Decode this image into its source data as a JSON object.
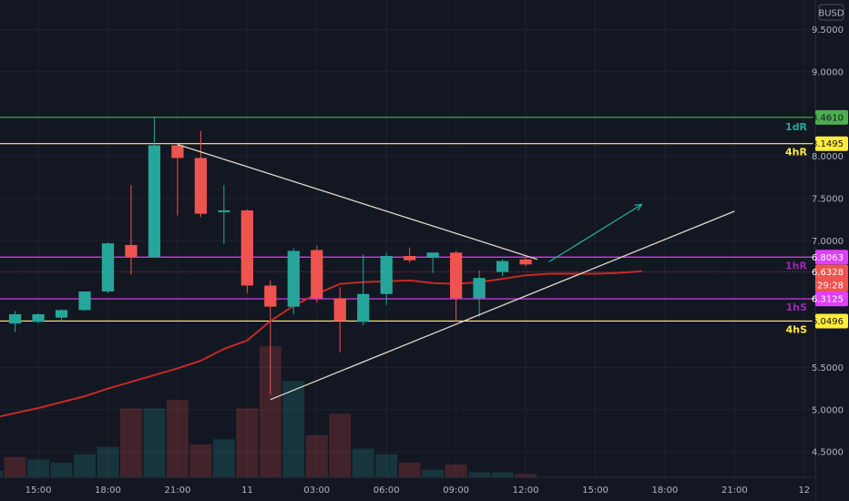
{
  "chart_data": {
    "type": "candlestick",
    "currency": "BUSD",
    "ylim": [
      4.2,
      9.85
    ],
    "y_ticks": [
      "9.5000",
      "9.0000",
      "8.0000",
      "7.5000",
      "7.0000",
      "5.5000",
      "5.0000",
      "4.5000"
    ],
    "y_tick_values": [
      9.5,
      9.0,
      8.0,
      7.5,
      7.0,
      5.5,
      5.0,
      4.5
    ],
    "x_labels": [
      "15:00",
      "18:00",
      "21:00",
      "11",
      "03:00",
      "06:00",
      "09:00",
      "12:00",
      "15:00",
      "18:00",
      "21:00",
      "12"
    ],
    "x_label_times": [
      2,
      5,
      8,
      11,
      14,
      17,
      20,
      23,
      26,
      29,
      32,
      35
    ],
    "x_range": [
      0.35,
      35.4
    ],
    "candles": [
      {
        "t": 0,
        "o": 5.82,
        "h": 6.12,
        "l": 5.8,
        "c": 6.1
      },
      {
        "t": 1,
        "o": 6.02,
        "h": 6.17,
        "l": 5.92,
        "c": 6.13
      },
      {
        "t": 2,
        "o": 6.04,
        "h": 6.14,
        "l": 6.02,
        "c": 6.13
      },
      {
        "t": 3,
        "o": 6.09,
        "h": 6.19,
        "l": 6.05,
        "c": 6.18
      },
      {
        "t": 4,
        "o": 6.18,
        "h": 6.38,
        "l": 6.17,
        "c": 6.4
      },
      {
        "t": 5,
        "o": 6.4,
        "h": 6.98,
        "l": 6.38,
        "c": 6.97
      },
      {
        "t": 6,
        "o": 6.95,
        "h": 7.66,
        "l": 6.6,
        "c": 6.81
      },
      {
        "t": 7,
        "o": 6.81,
        "h": 8.46,
        "l": 6.8,
        "c": 8.13
      },
      {
        "t": 8,
        "o": 8.13,
        "h": 8.14,
        "l": 7.3,
        "c": 7.98
      },
      {
        "t": 9,
        "o": 7.98,
        "h": 8.3,
        "l": 7.28,
        "c": 7.32
      },
      {
        "t": 10,
        "o": 7.36,
        "h": 7.66,
        "l": 6.96,
        "c": 7.36
      },
      {
        "t": 11,
        "o": 7.36,
        "h": 7.37,
        "l": 6.38,
        "c": 6.47
      },
      {
        "t": 12,
        "o": 6.47,
        "h": 6.53,
        "l": 5.18,
        "c": 6.22
      },
      {
        "t": 13,
        "o": 6.22,
        "h": 6.91,
        "l": 6.13,
        "c": 6.88
      },
      {
        "t": 14,
        "o": 6.89,
        "h": 6.94,
        "l": 6.27,
        "c": 6.32
      },
      {
        "t": 15,
        "o": 6.32,
        "h": 6.45,
        "l": 5.68,
        "c": 6.05
      },
      {
        "t": 16,
        "o": 6.04,
        "h": 6.84,
        "l": 6.0,
        "c": 6.37
      },
      {
        "t": 17,
        "o": 6.37,
        "h": 6.86,
        "l": 6.24,
        "c": 6.82
      },
      {
        "t": 18,
        "o": 6.82,
        "h": 6.92,
        "l": 6.74,
        "c": 6.77
      },
      {
        "t": 19,
        "o": 6.8,
        "h": 6.86,
        "l": 6.62,
        "c": 6.86
      },
      {
        "t": 20,
        "o": 6.86,
        "h": 6.88,
        "l": 6.05,
        "c": 6.32
      },
      {
        "t": 21,
        "o": 6.32,
        "h": 6.65,
        "l": 6.1,
        "c": 6.56
      },
      {
        "t": 22,
        "o": 6.63,
        "h": 6.78,
        "l": 6.58,
        "c": 6.76
      },
      {
        "t": 23,
        "o": 6.78,
        "h": 6.81,
        "l": 6.7,
        "c": 6.72
      }
    ],
    "volume": [
      {
        "t": 0,
        "v": 0.15,
        "up": true
      },
      {
        "t": 1,
        "v": 0.48,
        "up": false
      },
      {
        "t": 2,
        "v": 0.42,
        "up": true
      },
      {
        "t": 3,
        "v": 0.35,
        "up": true
      },
      {
        "t": 4,
        "v": 0.55,
        "up": true
      },
      {
        "t": 5,
        "v": 0.72,
        "up": true
      },
      {
        "t": 6,
        "v": 1.63,
        "up": false
      },
      {
        "t": 7,
        "v": 1.63,
        "up": true
      },
      {
        "t": 8,
        "v": 1.83,
        "up": false
      },
      {
        "t": 9,
        "v": 0.78,
        "up": false
      },
      {
        "t": 10,
        "v": 0.9,
        "up": true
      },
      {
        "t": 11,
        "v": 1.63,
        "up": false
      },
      {
        "t": 12,
        "v": 3.1,
        "up": false
      },
      {
        "t": 13,
        "v": 2.28,
        "up": true
      },
      {
        "t": 14,
        "v": 1.0,
        "up": false
      },
      {
        "t": 15,
        "v": 1.5,
        "up": false
      },
      {
        "t": 16,
        "v": 0.68,
        "up": true
      },
      {
        "t": 17,
        "v": 0.55,
        "up": true
      },
      {
        "t": 18,
        "v": 0.35,
        "up": false
      },
      {
        "t": 19,
        "v": 0.18,
        "up": true
      },
      {
        "t": 20,
        "v": 0.3,
        "up": false
      },
      {
        "t": 21,
        "v": 0.12,
        "up": true
      },
      {
        "t": 22,
        "v": 0.12,
        "up": true
      },
      {
        "t": 23,
        "v": 0.08,
        "up": false
      }
    ],
    "moving_average": [
      {
        "t": 0,
        "y": 4.9
      },
      {
        "t": 1,
        "y": 4.96
      },
      {
        "t": 2,
        "y": 5.02
      },
      {
        "t": 3,
        "y": 5.09
      },
      {
        "t": 4,
        "y": 5.16
      },
      {
        "t": 5,
        "y": 5.25
      },
      {
        "t": 6,
        "y": 5.33
      },
      {
        "t": 7,
        "y": 5.41
      },
      {
        "t": 8,
        "y": 5.49
      },
      {
        "t": 9,
        "y": 5.58
      },
      {
        "t": 10,
        "y": 5.72
      },
      {
        "t": 11,
        "y": 5.82
      },
      {
        "t": 12,
        "y": 6.05
      },
      {
        "t": 13,
        "y": 6.23
      },
      {
        "t": 14,
        "y": 6.37
      },
      {
        "t": 15,
        "y": 6.49
      },
      {
        "t": 16,
        "y": 6.51
      },
      {
        "t": 17,
        "y": 6.52
      },
      {
        "t": 18,
        "y": 6.53
      },
      {
        "t": 19,
        "y": 6.5
      },
      {
        "t": 20,
        "y": 6.49
      },
      {
        "t": 21,
        "y": 6.51
      },
      {
        "t": 22,
        "y": 6.55
      },
      {
        "t": 23,
        "y": 6.59
      },
      {
        "t": 24,
        "y": 6.61
      },
      {
        "t": 25,
        "y": 6.61
      },
      {
        "t": 26,
        "y": 6.61
      },
      {
        "t": 27,
        "y": 6.62
      },
      {
        "t": 28,
        "y": 6.64
      }
    ],
    "levels": [
      {
        "label": "1dR",
        "price": 8.461,
        "price_text": "8.4610",
        "color": "#4caf50",
        "tag_bg": "#4caf50",
        "tag_fg": "#131722",
        "label_color": "#26a69a",
        "label_side": "above"
      },
      {
        "label": "4hR",
        "price": 8.1495,
        "price_text": "8.1495",
        "color": "#fff176",
        "tag_bg": "#ffeb3b",
        "tag_fg": "#131722",
        "label_color": "#ffeb3b",
        "label_side": "below"
      },
      {
        "label": "1hR",
        "price": 6.8063,
        "price_text": "6.8063",
        "color": "#e040fb",
        "tag_bg": "#e040fb",
        "tag_fg": "#ffffff",
        "label_color": "#9c27b0",
        "label_side": "below"
      },
      {
        "label": "1hS",
        "price": 6.3125,
        "price_text": "6.3125",
        "color": "#e040fb",
        "tag_bg": "#e040fb",
        "tag_fg": "#ffffff",
        "label_color": "#9c27b0",
        "label_side": "below"
      },
      {
        "label": "4hS",
        "price": 6.0496,
        "price_text": "6.0496",
        "color": "#fff176",
        "tag_bg": "#ffeb3b",
        "tag_fg": "#131722",
        "label_color": "#ffeb3b",
        "label_side": "below"
      }
    ],
    "last_price": {
      "price": 6.6328,
      "text": "6.6328",
      "countdown": "29:28",
      "color": "#ef5350"
    },
    "trendlines": [
      {
        "name": "upper-trendline",
        "color": "#e0d7c6",
        "p1": {
          "t": 8,
          "y": 8.14
        },
        "p2": {
          "t": 23.5,
          "y": 6.78
        }
      },
      {
        "name": "lower-trendline",
        "color": "#e0d7c6",
        "p1": {
          "t": 12,
          "y": 5.12
        },
        "p2": {
          "t": 32,
          "y": 7.35
        }
      }
    ],
    "arrow": {
      "color": "#26a69a",
      "p1": {
        "t": 24,
        "y": 6.75
      },
      "p2": {
        "t": 28,
        "y": 7.43
      }
    },
    "colors": {
      "up": "#26a69a",
      "down": "#ef5350",
      "ma": "#c62828",
      "grid": "#1e2230",
      "axis_text": "#b2b5be",
      "background": "#131722"
    }
  }
}
